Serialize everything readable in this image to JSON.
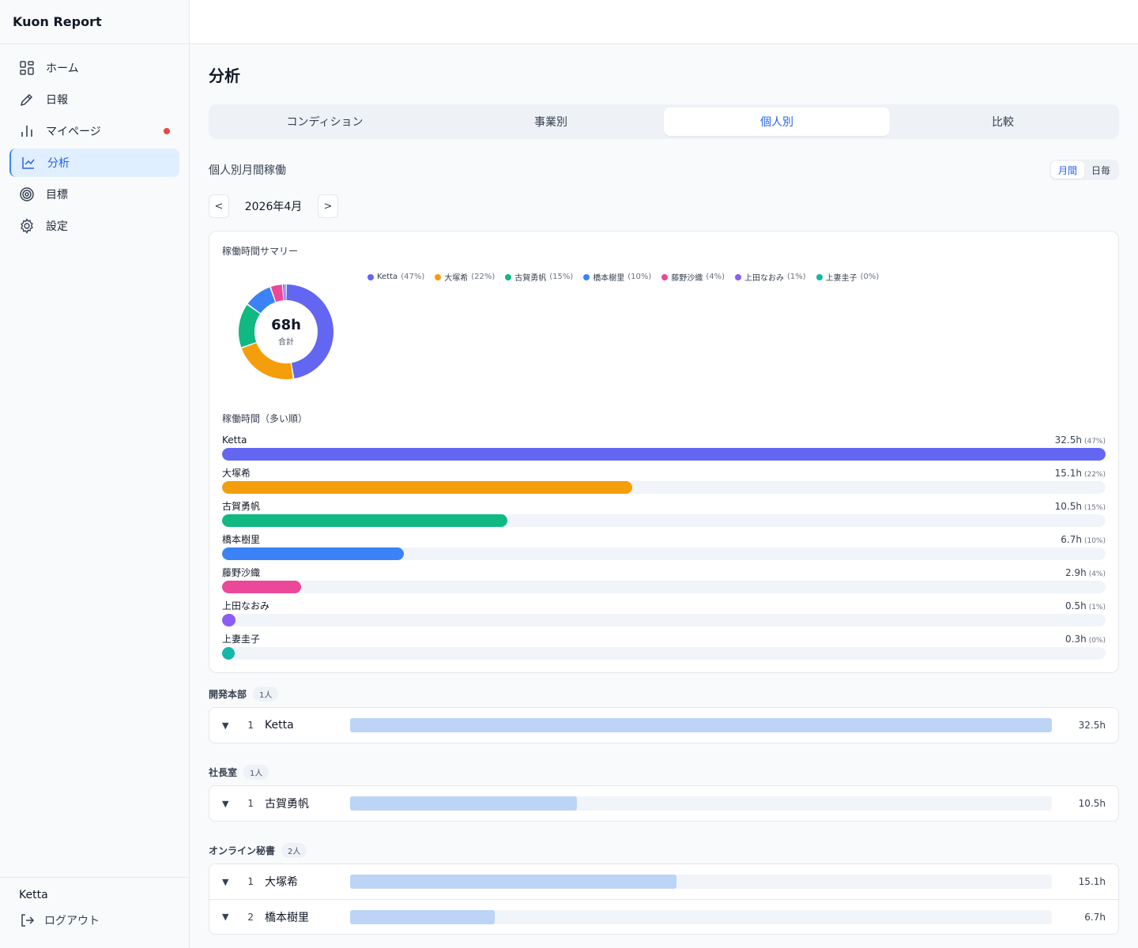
{
  "app": {
    "title": "Kuon Report"
  },
  "sidebar": {
    "items": [
      {
        "label": "ホーム",
        "icon": "grid-icon"
      },
      {
        "label": "日報",
        "icon": "pencil-icon"
      },
      {
        "label": "マイページ",
        "icon": "bar-chart-icon",
        "notification": true
      },
      {
        "label": "分析",
        "icon": "line-chart-icon",
        "active": true
      },
      {
        "label": "目標",
        "icon": "target-icon"
      },
      {
        "label": "設定",
        "icon": "gear-icon"
      }
    ],
    "user": "Ketta",
    "logout_label": "ログアウト"
  },
  "main": {
    "title": "分析",
    "tabs": [
      {
        "label": "コンディション"
      },
      {
        "label": "事業別"
      },
      {
        "label": "個人別",
        "active": true
      },
      {
        "label": "比較"
      }
    ],
    "section_title": "個人別月間稼働",
    "period_toggle": {
      "monthly": "月間",
      "daily": "日毎",
      "selected": "monthly"
    },
    "month": {
      "prev_label": "<",
      "label": "2026年4月",
      "next_label": ">"
    }
  },
  "summary": {
    "title": "稼働時間サマリー",
    "total": "68h",
    "total_label": "合計",
    "ranking_title": "稼働時間（多い順）"
  },
  "chart_data": {
    "type": "pie",
    "title": "稼働時間サマリー",
    "unit": "h",
    "series": [
      {
        "name": "Ketta",
        "value": 32.5,
        "value_label": "32.5h",
        "pct_label": "(47%)",
        "color": "#6366f1"
      },
      {
        "name": "大塚希",
        "value": 15.1,
        "value_label": "15.1h",
        "pct_label": "(22%)",
        "color": "#f59e0b"
      },
      {
        "name": "古賀勇帆",
        "value": 10.5,
        "value_label": "10.5h",
        "pct_label": "(15%)",
        "color": "#10b981"
      },
      {
        "name": "橋本樹里",
        "value": 6.7,
        "value_label": "6.7h",
        "pct_label": "(10%)",
        "color": "#3b82f6"
      },
      {
        "name": "藤野沙織",
        "value": 2.9,
        "value_label": "2.9h",
        "pct_label": "(4%)",
        "color": "#ec4899"
      },
      {
        "name": "上田なおみ",
        "value": 0.5,
        "value_label": "0.5h",
        "pct_label": "(1%)",
        "color": "#8b5cf6"
      },
      {
        "name": "上妻圭子",
        "value": 0.3,
        "value_label": "0.3h",
        "pct_label": "(0%)",
        "color": "#14b8a6"
      }
    ],
    "legend": "top"
  },
  "groups": [
    {
      "name": "開発本部",
      "count": "1人",
      "members": [
        {
          "rank": "1",
          "name": "Ketta",
          "hours_label": "32.5h",
          "hours": 32.5
        }
      ]
    },
    {
      "name": "社長室",
      "count": "1人",
      "members": [
        {
          "rank": "1",
          "name": "古賀勇帆",
          "hours_label": "10.5h",
          "hours": 10.5
        }
      ]
    },
    {
      "name": "オンライン秘書",
      "count": "2人",
      "members": [
        {
          "rank": "1",
          "name": "大塚希",
          "hours_label": "15.1h",
          "hours": 15.1
        },
        {
          "rank": "2",
          "name": "橋本樹里",
          "hours_label": "6.7h",
          "hours": 6.7
        }
      ]
    }
  ],
  "toggle_icon": "caret-down-icon"
}
